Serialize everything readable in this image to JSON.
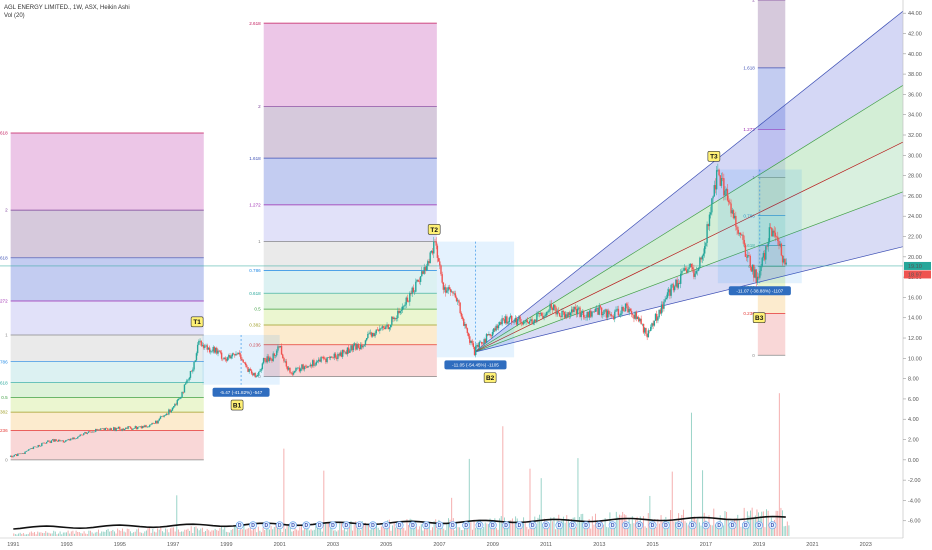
{
  "header": {
    "symbol_line": "AGL ENERGY LIMITED., 1W, ASX, Heikin Ashi",
    "vol_line": "Vol (20)"
  },
  "chart_data": {
    "type": "candlestick",
    "title": "AGL ENERGY LIMITED., 1W, ASX, Heikin Ashi",
    "x_axis": {
      "range": [
        1990.5,
        2024.4
      ],
      "tick_labels": [
        "1991",
        "1993",
        "1995",
        "1997",
        "1999",
        "2001",
        "2003",
        "2005",
        "2007",
        "2009",
        "2011",
        "2013",
        "2015",
        "2017",
        "2019",
        "2021",
        "2023"
      ],
      "tick_values": [
        1991,
        1993,
        1995,
        1997,
        1999,
        2001,
        2003,
        2005,
        2007,
        2009,
        2011,
        2013,
        2015,
        2017,
        2019,
        2021,
        2023
      ]
    },
    "y_axis": {
      "range": [
        -7.7,
        45.3
      ],
      "tick_labels": [
        "-6.00",
        "-4.00",
        "-2.00",
        "0.00",
        "2.00",
        "4.00",
        "6.00",
        "8.00",
        "10.00",
        "12.00",
        "14.00",
        "16.00",
        "18.00",
        "20.00",
        "22.00",
        "24.00",
        "26.00",
        "28.00",
        "30.00",
        "32.00",
        "34.00",
        "36.00",
        "38.00",
        "40.00",
        "42.00",
        "44.00"
      ],
      "tick_values": [
        -6,
        -4,
        -2,
        0,
        2,
        4,
        6,
        8,
        10,
        12,
        14,
        16,
        18,
        20,
        22,
        24,
        26,
        28,
        30,
        32,
        34,
        36,
        38,
        40,
        42,
        44
      ]
    },
    "last_price_labels": [
      "19.10",
      "18.97"
    ],
    "last_price": 19.1,
    "price_path": [
      [
        1990.9,
        0.3
      ],
      [
        1991.5,
        0.8
      ],
      [
        1992.0,
        1.5
      ],
      [
        1992.5,
        1.9
      ],
      [
        1993.0,
        1.8
      ],
      [
        1993.5,
        2.4
      ],
      [
        1994.0,
        2.9
      ],
      [
        1994.6,
        3.0
      ],
      [
        1995.2,
        3.1
      ],
      [
        1995.8,
        3.2
      ],
      [
        1996.3,
        3.6
      ],
      [
        1996.8,
        4.6
      ],
      [
        1997.2,
        6.0
      ],
      [
        1997.6,
        8.0
      ],
      [
        1997.85,
        10.2
      ],
      [
        1998.0,
        12.1
      ],
      [
        1998.1,
        11.2
      ],
      [
        1998.5,
        10.9
      ],
      [
        1999.0,
        9.9
      ],
      [
        1999.5,
        10.5
      ],
      [
        1999.8,
        8.8
      ],
      [
        2000.1,
        8.1
      ],
      [
        2000.4,
        9.7
      ],
      [
        2000.8,
        10.2
      ],
      [
        2001.0,
        11.4
      ],
      [
        2001.2,
        9.4
      ],
      [
        2001.5,
        8.6
      ],
      [
        2002.0,
        9.3
      ],
      [
        2002.5,
        9.8
      ],
      [
        2003.0,
        10.1
      ],
      [
        2003.5,
        10.7
      ],
      [
        2004.0,
        11.3
      ],
      [
        2004.5,
        12.4
      ],
      [
        2005.0,
        13.1
      ],
      [
        2005.4,
        14.2
      ],
      [
        2005.8,
        15.8
      ],
      [
        2006.2,
        17.7
      ],
      [
        2006.6,
        19.6
      ],
      [
        2006.8,
        21.5
      ],
      [
        2006.95,
        20.0
      ],
      [
        2007.1,
        17.2
      ],
      [
        2007.4,
        16.6
      ],
      [
        2007.7,
        15.4
      ],
      [
        2008.0,
        12.6
      ],
      [
        2008.3,
        10.6
      ],
      [
        2008.7,
        11.9
      ],
      [
        2009.2,
        13.2
      ],
      [
        2009.6,
        14.0
      ],
      [
        2010.0,
        13.7
      ],
      [
        2010.4,
        13.6
      ],
      [
        2010.8,
        14.2
      ],
      [
        2011.2,
        15.2
      ],
      [
        2011.6,
        14.3
      ],
      [
        2012.0,
        14.8
      ],
      [
        2012.5,
        14.2
      ],
      [
        2013.0,
        14.8
      ],
      [
        2013.5,
        14.1
      ],
      [
        2014.0,
        15.1
      ],
      [
        2014.5,
        13.7
      ],
      [
        2014.8,
        12.3
      ],
      [
        2015.2,
        14.4
      ],
      [
        2015.6,
        16.4
      ],
      [
        2016.0,
        17.7
      ],
      [
        2016.4,
        19.1
      ],
      [
        2016.6,
        17.8
      ],
      [
        2016.9,
        20.6
      ],
      [
        2017.2,
        24.8
      ],
      [
        2017.45,
        28.5
      ],
      [
        2017.7,
        26.5
      ],
      [
        2018.0,
        24.4
      ],
      [
        2018.3,
        22.1
      ],
      [
        2018.6,
        19.6
      ],
      [
        2018.95,
        17.7
      ],
      [
        2019.2,
        20.2
      ],
      [
        2019.4,
        22.5
      ],
      [
        2019.7,
        21.4
      ],
      [
        2019.9,
        19.8
      ],
      [
        2020.05,
        19.1
      ]
    ],
    "volume_baseline": -6.4,
    "fib_level_labels": [
      "0",
      "0.236",
      "0.382",
      "0.5",
      "0.618",
      "0.786",
      "1",
      "1.272",
      "1.618",
      "2",
      "2.618"
    ],
    "fib_groups": [
      {
        "start": 1990.9,
        "end": 1998.15,
        "low": 0.0,
        "high": 12.3
      },
      {
        "start": 2000.4,
        "end": 2006.9,
        "low": 8.2,
        "high": 21.5
      },
      {
        "start": 2018.95,
        "end": 2019.98,
        "low": 10.3,
        "high": 27.8
      }
    ],
    "fib_levels": [
      {
        "level": 0,
        "color": "#888888",
        "zone": "#f8d0d0"
      },
      {
        "level": 0.236,
        "color": "#e53935",
        "zone": "#fbe7c6"
      },
      {
        "level": 0.382,
        "color": "#9e9d24",
        "zone": "#e8f5c8"
      },
      {
        "level": 0.5,
        "color": "#43a047",
        "zone": "#d7f0d2"
      },
      {
        "level": 0.618,
        "color": "#26a69a",
        "zone": "#d6eef0"
      },
      {
        "level": 0.786,
        "color": "#1e88e5",
        "zone": "#e6e6e6"
      },
      {
        "level": 1,
        "color": "#888888",
        "zone": "#dcdcf8"
      },
      {
        "level": 1.272,
        "color": "#9c27b0",
        "zone": "#b9c3ef"
      },
      {
        "level": 1.618,
        "color": "#3f51b5",
        "zone": "#cfc0d6"
      },
      {
        "level": 2,
        "color": "#7b3f98",
        "zone": "#e9bce3"
      },
      {
        "level": 2.618,
        "color": "#c2185b",
        "zone": "none"
      }
    ],
    "measurements": [
      {
        "label": "-5.47 (-41.82%) -547",
        "x1": 1998.1,
        "x2": 2001.0,
        "y_top": 12.3,
        "y_bottom": 7.4
      },
      {
        "label": "-11.05 (-54.45%) -1105",
        "x1": 2006.9,
        "x2": 2009.8,
        "y_top": 21.5,
        "y_bottom": 10.1
      },
      {
        "label": "-11.07 (-38.88%) -1107",
        "x1": 2017.45,
        "x2": 2020.6,
        "y_top": 28.6,
        "y_bottom": 17.4
      }
    ],
    "markers": [
      {
        "label": "T1",
        "x": 1997.9,
        "y": 13.6
      },
      {
        "label": "B1",
        "x": 1999.4,
        "y": 5.4
      },
      {
        "label": "T2",
        "x": 2006.8,
        "y": 22.7
      },
      {
        "label": "B2",
        "x": 2008.9,
        "y": 8.1
      },
      {
        "label": "T3",
        "x": 2017.3,
        "y": 29.9
      },
      {
        "label": "B3",
        "x": 2019.0,
        "y": 14.0
      }
    ],
    "fan": {
      "origin": [
        2008.3,
        10.6
      ],
      "end_x": 2024.4,
      "rays_end_y": [
        44.2,
        36.9,
        31.3,
        26.4,
        21.0
      ],
      "fills": [
        "rgba(100,110,220,0.28)",
        "rgba(110,200,120,0.30)",
        "rgba(120,200,140,0.28)",
        "rgba(120,130,220,0.28)"
      ]
    }
  }
}
